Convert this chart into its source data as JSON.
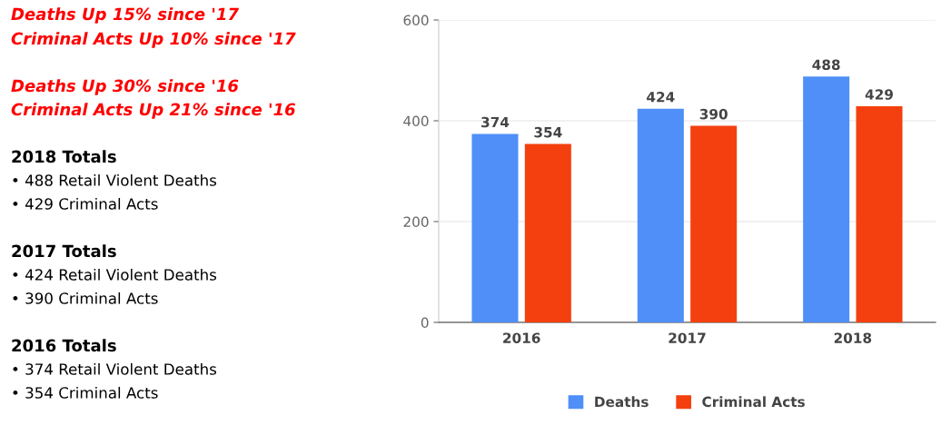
{
  "chart_data": {
    "type": "bar",
    "categories": [
      "2016",
      "2017",
      "2018"
    ],
    "series": [
      {
        "name": "Deaths",
        "color": "#4f8ff7",
        "values": [
          374,
          424,
          488
        ]
      },
      {
        "name": "Criminal Acts",
        "color": "#f4400f",
        "values": [
          354,
          390,
          429
        ]
      }
    ],
    "ylim": [
      0,
      600
    ],
    "yticks": [
      0,
      200,
      400,
      600
    ],
    "grid": "y",
    "legend": "bottom",
    "data_labels": true,
    "annotations": [
      "Deaths Up 15% since '17",
      "Criminal Acts Up 10% since '17",
      "Deaths Up 30% since '16",
      "Criminal Acts Up 21% since '16",
      "2018 Totals",
      "• 488 Retail Violent Deaths",
      "• 429 Criminal Acts",
      "2017 Totals",
      "• 424 Retail Violent Deaths",
      "• 390 Criminal Acts",
      "2016 Totals",
      "• 374 Retail Violent Deaths",
      "• 354 Criminal Acts"
    ]
  }
}
